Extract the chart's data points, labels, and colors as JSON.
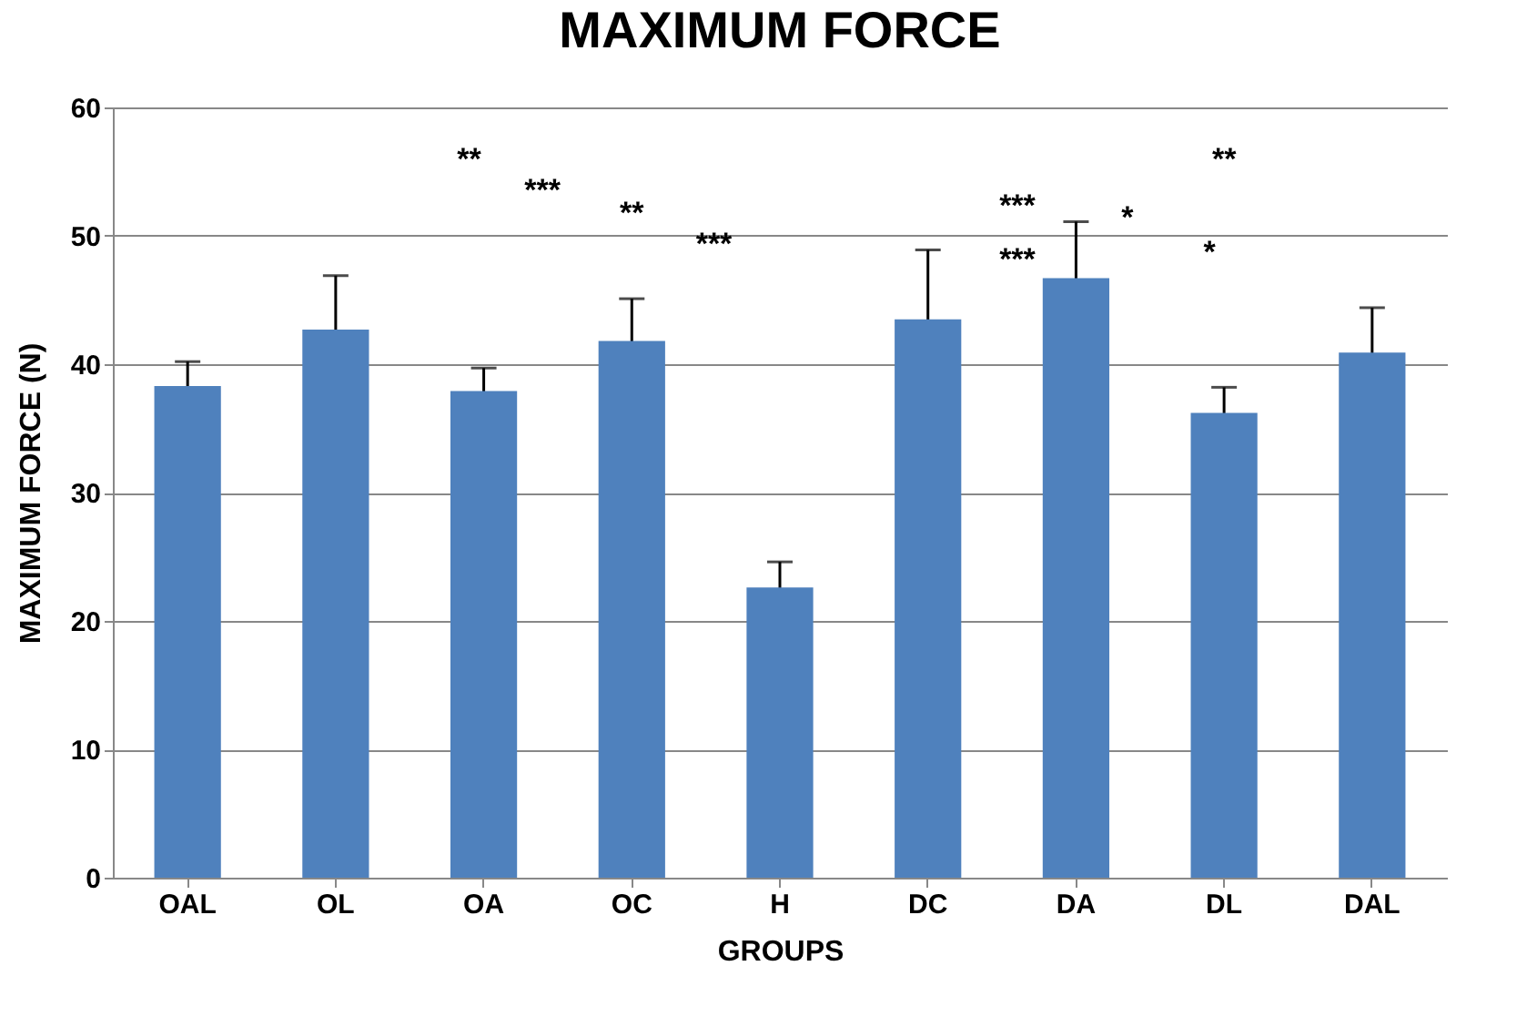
{
  "chart_data": {
    "type": "bar",
    "title": "MAXIMUM FORCE",
    "xlabel": "GROUPS",
    "ylabel": "MAXIMUM FORCE (N)",
    "categories": [
      "OAL",
      "OL",
      "OA",
      "OC",
      "H",
      "DC",
      "DA",
      "DL",
      "DAL"
    ],
    "values": [
      38.3,
      42.7,
      37.9,
      41.8,
      22.6,
      43.5,
      46.7,
      36.2,
      40.9
    ],
    "errors": [
      1.9,
      4.2,
      1.8,
      3.3,
      2.0,
      5.4,
      4.4,
      2.0,
      3.5
    ],
    "color": "#4f81bd",
    "ylim": [
      0,
      60
    ],
    "yticks": [
      0,
      10,
      20,
      30,
      40,
      50,
      60
    ],
    "grid": "y",
    "annotations": [
      "**",
      "***",
      "**",
      "***",
      "***",
      "***",
      "*",
      "*",
      "**"
    ]
  }
}
